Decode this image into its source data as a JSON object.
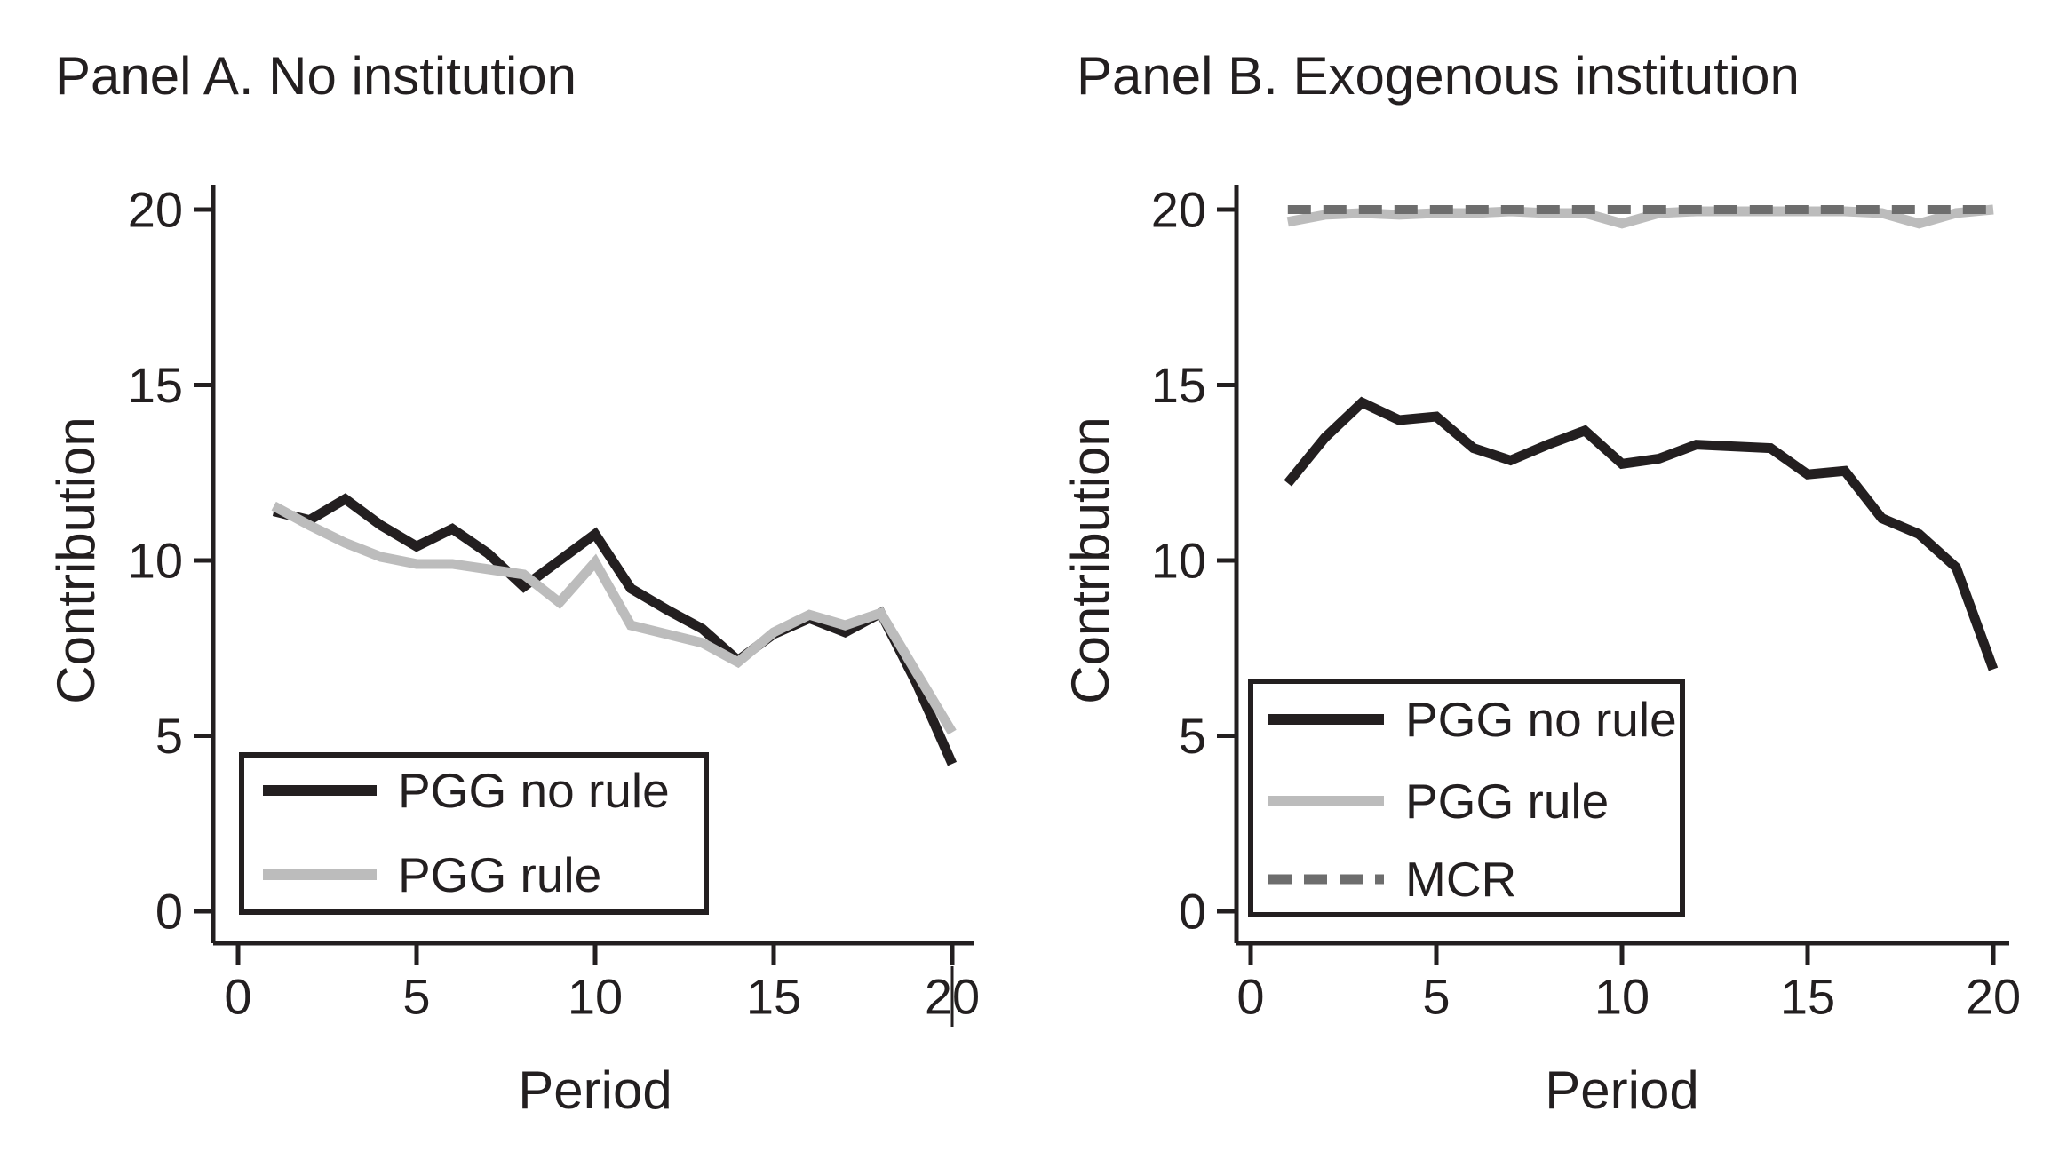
{
  "colors": {
    "background": "#ffffff",
    "text": "#231f20",
    "axis": "#231f20",
    "pgg_no_rule": "#231f20",
    "pgg_rule": "#bcbcbc",
    "mcr": "#6d6d6d"
  },
  "chart_data": [
    {
      "type": "line",
      "panel": "A",
      "title": "Panel A. No institution",
      "xlabel": "Period",
      "ylabel": "Contribution",
      "xlim": [
        0,
        20
      ],
      "ylim": [
        0,
        20
      ],
      "xticks": [
        0,
        5,
        10,
        15,
        20
      ],
      "yticks": [
        0,
        5,
        10,
        15,
        20
      ],
      "grid": false,
      "legend_position": "inside-bottom-left",
      "x": [
        1,
        2,
        3,
        4,
        5,
        6,
        7,
        8,
        9,
        10,
        11,
        12,
        13,
        14,
        15,
        16,
        17,
        18,
        19,
        20
      ],
      "series": [
        {
          "name": "PGG no rule",
          "style": "solid",
          "color_key": "pgg_no_rule",
          "values": [
            11.4,
            11.15,
            11.75,
            11.0,
            10.4,
            10.9,
            10.2,
            9.25,
            10.0,
            10.75,
            9.2,
            8.6,
            8.05,
            7.15,
            7.9,
            8.35,
            7.95,
            8.5,
            6.5,
            4.2
          ]
        },
        {
          "name": "PGG rule",
          "style": "solid",
          "color_key": "pgg_rule",
          "values": [
            11.55,
            11.0,
            10.5,
            10.1,
            9.9,
            9.9,
            9.75,
            9.6,
            8.8,
            9.95,
            8.15,
            7.9,
            7.65,
            7.1,
            7.95,
            8.45,
            8.15,
            8.5,
            6.8,
            5.1
          ]
        }
      ]
    },
    {
      "type": "line",
      "panel": "B",
      "title": "Panel B. Exogenous institution",
      "xlabel": "Period",
      "ylabel": "Contribution",
      "xlim": [
        0,
        20
      ],
      "ylim": [
        0,
        20
      ],
      "xticks": [
        0,
        5,
        10,
        15,
        20
      ],
      "yticks": [
        0,
        5,
        10,
        15,
        20
      ],
      "grid": false,
      "legend_position": "inside-bottom-left",
      "x": [
        1,
        2,
        3,
        4,
        5,
        6,
        7,
        8,
        9,
        10,
        11,
        12,
        13,
        14,
        15,
        16,
        17,
        18,
        19,
        20
      ],
      "series": [
        {
          "name": "PGG no rule",
          "style": "solid",
          "color_key": "pgg_no_rule",
          "values": [
            12.2,
            13.5,
            14.5,
            14.0,
            14.1,
            13.2,
            12.85,
            13.3,
            13.7,
            12.75,
            12.9,
            13.3,
            13.25,
            13.2,
            12.45,
            12.55,
            11.2,
            10.75,
            9.8,
            6.9
          ]
        },
        {
          "name": "PGG rule",
          "style": "solid",
          "color_key": "pgg_rule",
          "values": [
            19.65,
            19.85,
            19.9,
            19.85,
            19.9,
            19.9,
            19.95,
            19.9,
            19.9,
            19.6,
            19.9,
            19.95,
            19.95,
            19.95,
            19.95,
            19.95,
            19.9,
            19.6,
            19.9,
            20.0
          ]
        },
        {
          "name": "MCR",
          "style": "dashed",
          "color_key": "mcr",
          "values": [
            20,
            20,
            20,
            20,
            20,
            20,
            20,
            20,
            20,
            20,
            20,
            20,
            20,
            20,
            20,
            20,
            20,
            20,
            20,
            20
          ]
        }
      ]
    }
  ]
}
